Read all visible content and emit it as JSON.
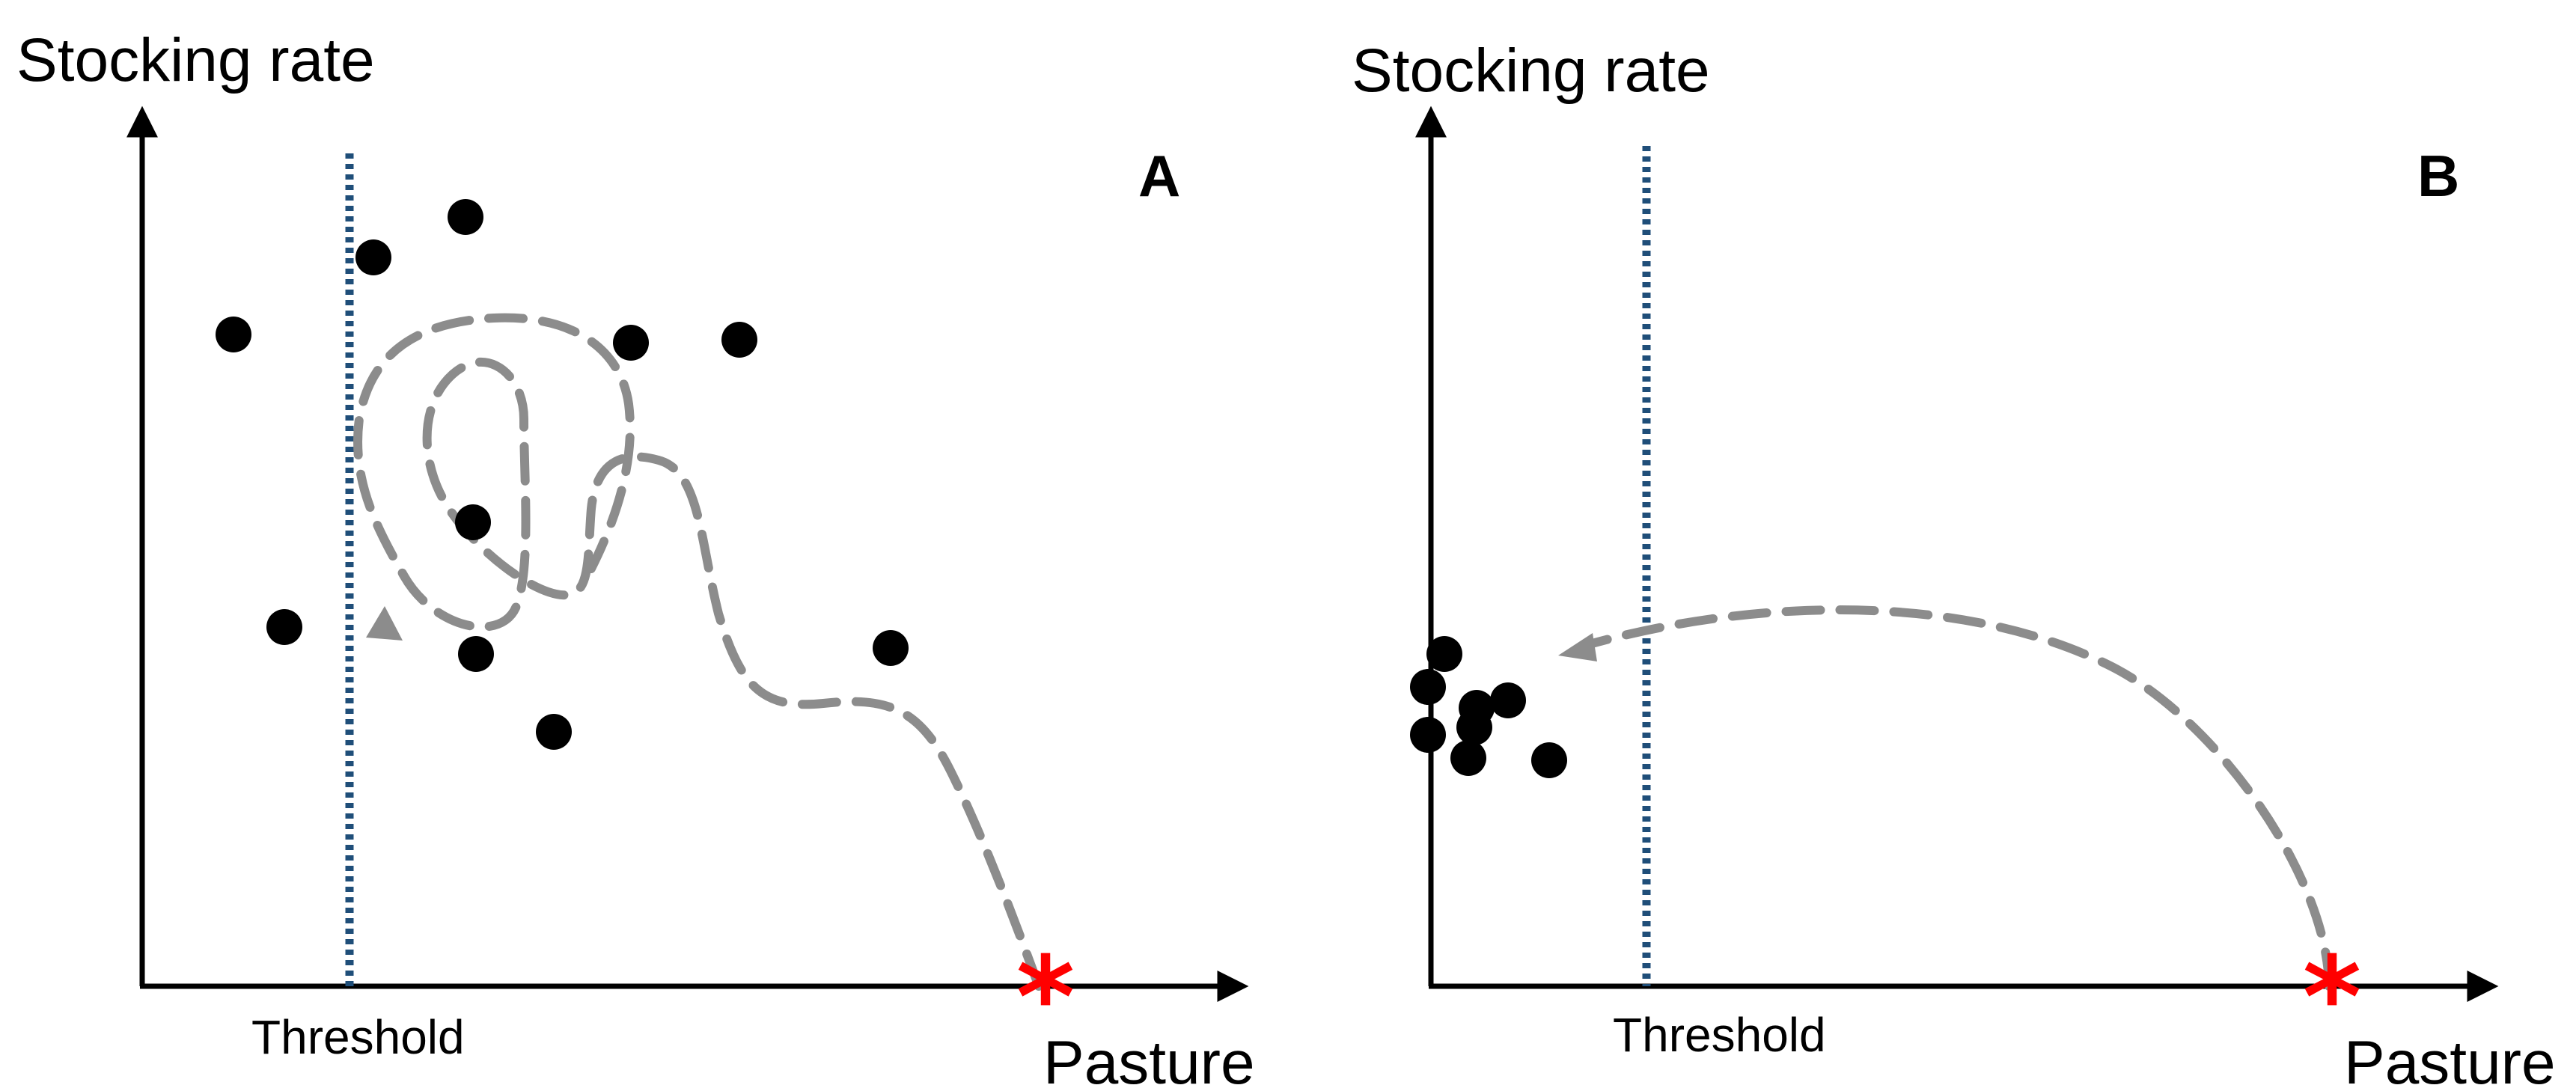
{
  "panels": {
    "a": {
      "letter": "A",
      "y_axis_title": "Stocking rate",
      "x_axis_title": "Pasture",
      "threshold_label": "Threshold",
      "start_marker": "*"
    },
    "b": {
      "letter": "B",
      "y_axis_title": "Stocking rate",
      "x_axis_title": "Pasture",
      "threshold_label": "Threshold",
      "start_marker": "*"
    }
  },
  "colors": {
    "axis": "#000000",
    "threshold_line": "#1f4e79",
    "trajectory": "#8c8c8c",
    "points": "#000000",
    "start_marker": "#ff0000"
  }
}
